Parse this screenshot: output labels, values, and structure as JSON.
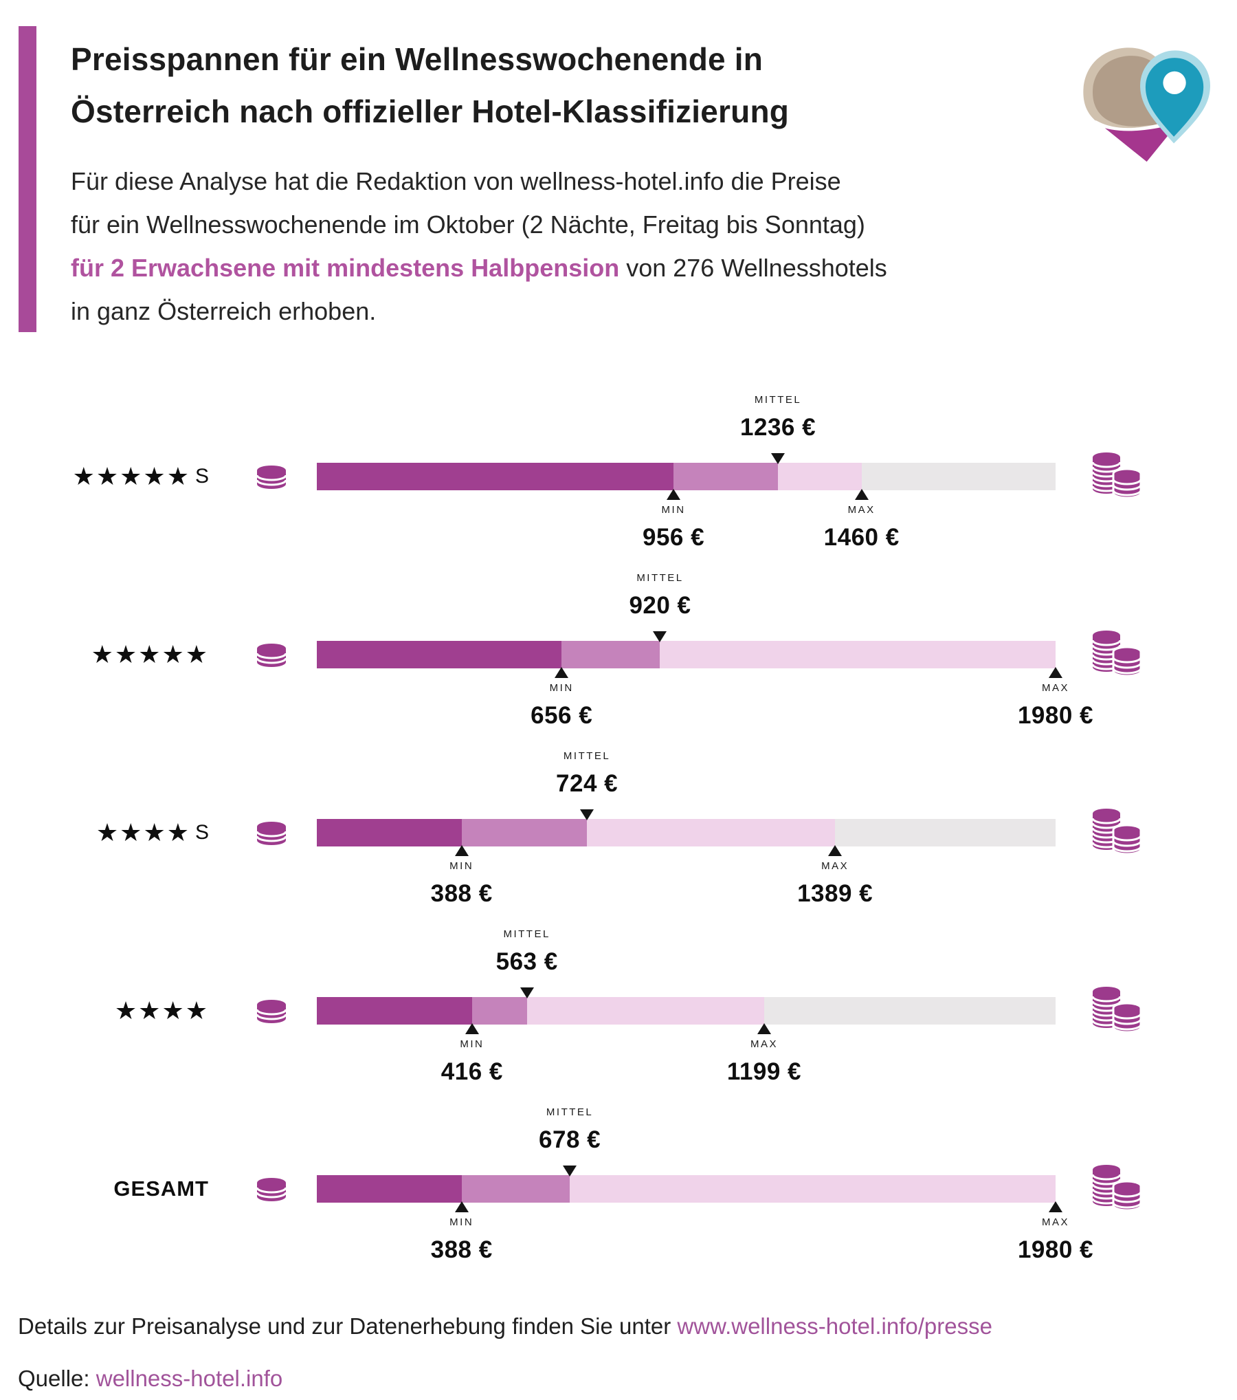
{
  "title": {
    "line1": "Preisspannen für ein Wellnesswochenende in",
    "line2": "Österreich nach offizieller Hotel-Klassifizierung"
  },
  "intro": {
    "line1": "Für diese Analyse hat die Redaktion von wellness-hotel.info die Preise",
    "line2": "für ein Wellnesswochenende im Oktober (2 Nächte, Freitag bis Sonntag)",
    "line3_highlight": "für 2 Erwachsene mit mindestens Halbpension",
    "line3_rest": " von 276 Wellnesshotels",
    "line4": "in ganz Österreich erhoben."
  },
  "chart_data": {
    "type": "bar",
    "subtype": "horizontal-price-range",
    "unit": "€",
    "scale_min": 0,
    "scale_max": 1980,
    "grid": false,
    "tick_labels": {
      "mittel": "MITTEL",
      "min": "MIN",
      "max": "MAX"
    },
    "categories": [
      "★★★★★ S",
      "★★★★★",
      "★★★★ S",
      "★★★★",
      "GESAMT"
    ],
    "rows": [
      {
        "stars": 5,
        "suffix": "S",
        "label": "",
        "min": 956,
        "mittel": 1236,
        "max": 1460
      },
      {
        "stars": 5,
        "suffix": "",
        "label": "",
        "min": 656,
        "mittel": 920,
        "max": 1980
      },
      {
        "stars": 4,
        "suffix": "S",
        "label": "",
        "min": 388,
        "mittel": 724,
        "max": 1389
      },
      {
        "stars": 4,
        "suffix": "",
        "label": "",
        "min": 416,
        "mittel": 563,
        "max": 1199
      },
      {
        "stars": 0,
        "suffix": "",
        "label": "GESAMT",
        "min": 388,
        "mittel": 678,
        "max": 1980
      }
    ]
  },
  "footer": {
    "line1_text": "Details zur Preisanalyse und zur Datenerhebung finden Sie unter ",
    "line1_link": "www.wellness-hotel.info/presse",
    "line2_text": "Quelle: ",
    "line2_link": "wellness-hotel.info"
  },
  "icons": {
    "row_left": "coin-stack-icon",
    "row_right": "coin-pile-icon",
    "logo": "wellness-hotel-heart-pin-logo"
  },
  "colors": {
    "primary": "#9c3a8c",
    "bar_dark": "#a03f90",
    "bar_mid": "#c583bb",
    "bar_light": "#f0d3ea",
    "bar_gray": "#e9e7e8",
    "accent_bar": "#a84a99",
    "highlight_text": "#b0539f",
    "link": "#a1539a",
    "marker": "#141414",
    "logo_teal": "#1d9cbc",
    "logo_teal_light": "#abdbe7",
    "logo_beige": "#b19d89",
    "logo_beige_light": "#d0c1ae",
    "logo_magenta": "#a5368e",
    "logo_magenta_dark": "#8e2d79"
  }
}
